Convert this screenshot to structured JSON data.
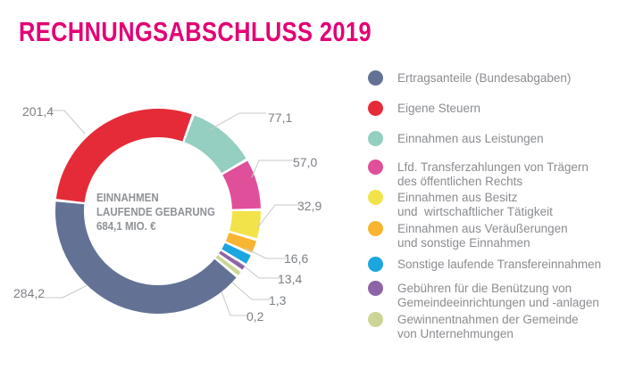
{
  "chart_data": {
    "type": "pie",
    "title": "RECHNUNGSABSCHLUSS 2019",
    "center_label": [
      "EINNAHMEN",
      "LAUFENDE GEBARUNG",
      "684,1 MIO. €"
    ],
    "legend_position": "right",
    "slices": [
      {
        "name": "Einnahmen aus Leistungen",
        "value": 77.1,
        "label": "77,1",
        "color": "#94cfc1"
      },
      {
        "name": "Lfd. Transferzahlungen von Trägern\ndes öffentlichen Rechts",
        "value": 57.0,
        "label": "57,0",
        "color": "#e04f9a"
      },
      {
        "name": "Einnahmen aus Besitz\nund  wirtschaftlicher Tätigkeit",
        "value": 32.9,
        "label": "32,9",
        "color": "#f3e34a"
      },
      {
        "name": "Einnahmen aus Veräußerungen\nund sonstige Einnahmen",
        "value": 16.6,
        "label": "16,6",
        "color": "#f9b431"
      },
      {
        "name": "Sonstige laufende Transfereinnahmen",
        "value": 13.4,
        "label": "13,4",
        "color": "#1ba6df"
      },
      {
        "name": "Gebühren für die Benützung von\nGemeindeeinrichtungen und -anlagen",
        "value": 1.3,
        "label": "1,3",
        "color": "#8e64a8"
      },
      {
        "name": "Gewinnentnahmen der Gemeinde\nvon Unternehmungen",
        "value": 0.2,
        "label": "0,2",
        "color": "#cdd596"
      },
      {
        "name": "Ertragsanteile (Bundesabgaben)",
        "value": 284.2,
        "label": "284,2",
        "color": "#637294"
      },
      {
        "name": "Eigene Steuern",
        "value": 201.4,
        "label": "201,4",
        "color": "#e52b38"
      }
    ],
    "legend_order": [
      7,
      8,
      0,
      1,
      2,
      3,
      4,
      5,
      6
    ]
  }
}
